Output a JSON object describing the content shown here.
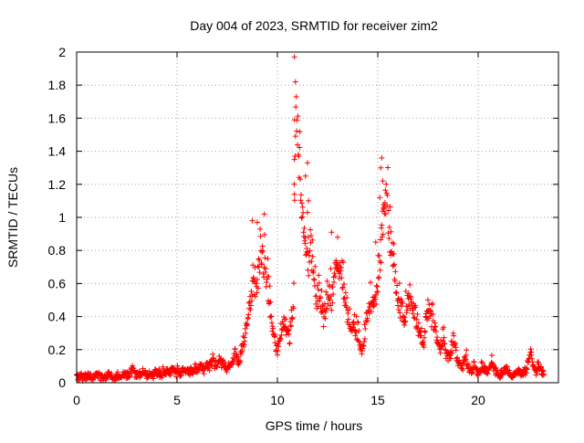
{
  "chart_data": {
    "type": "scatter",
    "title": "Day 004 of 2023, SRMTID for receiver zim2",
    "xlabel": "GPS time / hours",
    "ylabel": "SRMTID / TECUs",
    "xlim": [
      0,
      24
    ],
    "ylim": [
      0,
      2
    ],
    "xticks": [
      0,
      5,
      10,
      15,
      20
    ],
    "yticks": [
      0,
      0.2,
      0.4,
      0.6,
      0.8,
      1,
      1.2,
      1.4,
      1.6,
      1.8,
      2
    ],
    "xtick_labels": [
      "0",
      "5",
      "10",
      "15",
      "20"
    ],
    "ytick_labels": [
      "0",
      "0.2",
      "0.4",
      "0.6",
      "0.8",
      "1",
      "1.2",
      "1.4",
      "1.6",
      "1.8",
      "2"
    ],
    "grid": true,
    "marker": "+",
    "color": "#ff0000",
    "series": [
      {
        "name": "SRMTID",
        "x_start": 0.0,
        "x_step": 0.1,
        "y": [
          0.05,
          0.04,
          0.06,
          0.03,
          0.05,
          0.04,
          0.06,
          0.05,
          0.03,
          0.04,
          0.05,
          0.06,
          0.04,
          0.03,
          0.05,
          0.04,
          0.06,
          0.05,
          0.04,
          0.03,
          0.05,
          0.06,
          0.04,
          0.05,
          0.07,
          0.05,
          0.06,
          0.08,
          0.1,
          0.06,
          0.05,
          0.07,
          0.06,
          0.09,
          0.08,
          0.05,
          0.06,
          0.07,
          0.05,
          0.08,
          0.06,
          0.07,
          0.05,
          0.09,
          0.07,
          0.08,
          0.06,
          0.09,
          0.1,
          0.07,
          0.08,
          0.06,
          0.07,
          0.09,
          0.08,
          0.1,
          0.07,
          0.09,
          0.08,
          0.11,
          0.09,
          0.1,
          0.12,
          0.08,
          0.11,
          0.13,
          0.1,
          0.15,
          0.17,
          0.13,
          0.12,
          0.18,
          0.15,
          0.14,
          0.11,
          0.1,
          0.12,
          0.15,
          0.17,
          0.22,
          0.18,
          0.15,
          0.22,
          0.28,
          0.35,
          0.45,
          0.55,
          0.62,
          0.7,
          0.68,
          0.75,
          0.85,
          0.95,
          0.9,
          0.8,
          0.7,
          0.55,
          0.45,
          0.35,
          0.28,
          0.22,
          0.3,
          0.38,
          0.45,
          0.4,
          0.35,
          0.3,
          0.42,
          0.52,
          1.97,
          1.82,
          1.59,
          1.35,
          1.15,
          0.95,
          0.88,
          0.85,
          0.92,
          0.78,
          0.65,
          0.58,
          0.62,
          0.55,
          0.48,
          0.52,
          0.6,
          0.68,
          0.58,
          0.72,
          0.88,
          0.85,
          0.8,
          0.75,
          0.62,
          0.55,
          0.48,
          0.4,
          0.35,
          0.42,
          0.38,
          0.32,
          0.28,
          0.22,
          0.3,
          0.4,
          0.48,
          0.55,
          0.6,
          0.58,
          0.62,
          0.7,
          0.85,
          1.1,
          1.3,
          1.35,
          1.25,
          1.05,
          0.95,
          0.85,
          0.75,
          0.62,
          0.55,
          0.5,
          0.45,
          0.5,
          0.58,
          0.62,
          0.55,
          0.48,
          0.42,
          0.38,
          0.35,
          0.3,
          0.28,
          0.45,
          0.55,
          0.52,
          0.45,
          0.4,
          0.35,
          0.3,
          0.25,
          0.28,
          0.3,
          0.22,
          0.2,
          0.18,
          0.25,
          0.3,
          0.22,
          0.15,
          0.12,
          0.1,
          0.15,
          0.18,
          0.12,
          0.1,
          0.08,
          0.12,
          0.1,
          0.07,
          0.08,
          0.12,
          0.1,
          0.07,
          0.09,
          0.12,
          0.15,
          0.1,
          0.08,
          0.07,
          0.05,
          0.06,
          0.08,
          0.1,
          0.08,
          0.06,
          0.05,
          0.07,
          0.06,
          0.08,
          0.07,
          0.06,
          0.08,
          0.1,
          0.14,
          0.22,
          0.15,
          0.1,
          0.08,
          0.12,
          0.1,
          0.08
        ],
        "peaks": [
          {
            "x": 10.85,
            "y": 1.97
          },
          {
            "x": 10.9,
            "y": 1.82
          },
          {
            "x": 10.85,
            "y": 1.59
          },
          {
            "x": 10.85,
            "y": 1.35
          },
          {
            "x": 10.85,
            "y": 1.14
          },
          {
            "x": 11.5,
            "y": 1.33
          },
          {
            "x": 11.4,
            "y": 1.25
          },
          {
            "x": 11.55,
            "y": 1.1
          },
          {
            "x": 11.5,
            "y": 1.03
          },
          {
            "x": 15.2,
            "y": 1.36
          },
          {
            "x": 15.15,
            "y": 1.3
          },
          {
            "x": 15.25,
            "y": 1.22
          },
          {
            "x": 15.1,
            "y": 1.12
          },
          {
            "x": 15.3,
            "y": 1.05
          },
          {
            "x": 9.35,
            "y": 1.02
          },
          {
            "x": 9.0,
            "y": 0.97
          },
          {
            "x": 8.75,
            "y": 0.98
          },
          {
            "x": 12.7,
            "y": 0.91
          },
          {
            "x": 13.0,
            "y": 0.88
          },
          {
            "x": 14.9,
            "y": 0.85
          },
          {
            "x": 15.8,
            "y": 0.84
          }
        ]
      }
    ]
  }
}
